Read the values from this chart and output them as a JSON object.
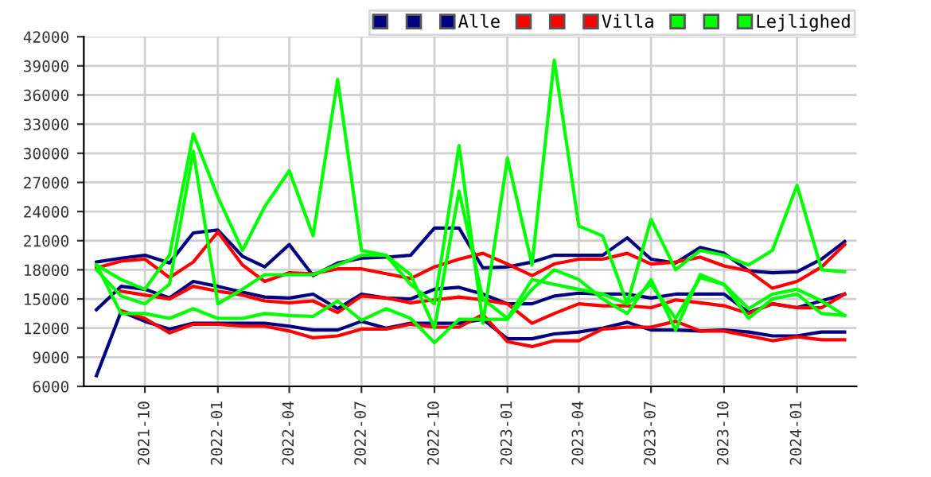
{
  "chart_data": {
    "type": "line",
    "x": [
      "2021-08",
      "2021-09",
      "2021-10",
      "2021-11",
      "2021-12",
      "2022-01",
      "2022-02",
      "2022-03",
      "2022-04",
      "2022-05",
      "2022-06",
      "2022-07",
      "2022-08",
      "2022-09",
      "2022-10",
      "2022-11",
      "2022-12",
      "2023-01",
      "2023-02",
      "2023-03",
      "2023-04",
      "2023-05",
      "2023-06",
      "2023-07",
      "2023-08",
      "2023-09",
      "2023-10",
      "2023-11",
      "2023-12",
      "2024-01",
      "2024-02",
      "2024-03"
    ],
    "series": [
      {
        "color": "#000080",
        "values": [
          18800,
          19200,
          19500,
          18700,
          21800,
          22100,
          19400,
          18300,
          20600,
          17400,
          18700,
          19200,
          19300,
          19500,
          22300,
          22300,
          18200,
          18300,
          18800,
          19500,
          19500,
          19500,
          21300,
          19100,
          18700,
          20300,
          19700,
          17900,
          17700,
          17800,
          19100,
          20900
        ]
      },
      {
        "color": "#000080",
        "values": [
          7100,
          13700,
          12700,
          11900,
          12500,
          12500,
          12500,
          12500,
          12200,
          11800,
          11800,
          12700,
          12000,
          12500,
          12500,
          12500,
          12900,
          10900,
          10900,
          11400,
          11600,
          12000,
          12600,
          11800,
          11800,
          11700,
          11800,
          11600,
          11200,
          11200,
          11600,
          11600
        ]
      },
      {
        "name": "Alle",
        "color": "#000080",
        "values": [
          13900,
          16300,
          16000,
          15100,
          16800,
          16300,
          15700,
          15200,
          15100,
          15500,
          14000,
          15500,
          15100,
          15000,
          16000,
          16200,
          15500,
          14500,
          14500,
          15300,
          15600,
          15500,
          15500,
          15100,
          15500,
          15500,
          15500,
          13600,
          14500,
          14100,
          14800,
          15500
        ]
      },
      {
        "color": "#ff0000",
        "values": [
          18200,
          18900,
          19100,
          17200,
          18800,
          21900,
          18500,
          16800,
          17700,
          17600,
          18100,
          18100,
          17600,
          17100,
          18300,
          19100,
          19700,
          18600,
          17400,
          18600,
          19100,
          19100,
          19700,
          18600,
          18800,
          19300,
          18400,
          17900,
          16100,
          16800,
          18300,
          20600
        ]
      },
      {
        "color": "#ff0000",
        "values": [
          null,
          13800,
          13000,
          11500,
          12400,
          12400,
          12200,
          12200,
          11700,
          11000,
          11200,
          11900,
          11900,
          12400,
          12100,
          12100,
          13400,
          10600,
          10100,
          10700,
          10700,
          11900,
          12100,
          12100,
          12700,
          11700,
          11700,
          11200,
          10700,
          11100,
          10800,
          10800
        ]
      },
      {
        "name": "Villa",
        "color": "#ff0000",
        "values": [
          null,
          15800,
          15400,
          15000,
          16300,
          15800,
          15400,
          14800,
          14600,
          14800,
          13600,
          15300,
          15100,
          14600,
          14900,
          15200,
          14900,
          14500,
          12500,
          13500,
          14500,
          14300,
          14300,
          14100,
          14900,
          14600,
          14300,
          13500,
          14500,
          14100,
          14100,
          15500
        ]
      },
      {
        "color": "#00ff00",
        "values": [
          18500,
          17000,
          16000,
          19500,
          32000,
          25500,
          20000,
          24500,
          28200,
          21500,
          37600,
          20000,
          19500,
          16500,
          14500,
          30800,
          12500,
          29500,
          18500,
          39600,
          22500,
          21500,
          14500,
          23200,
          18000,
          20000,
          19500,
          18500,
          20000,
          26700,
          18000,
          17800
        ]
      },
      {
        "color": "#00ff00",
        "values": [
          18000,
          15300,
          14500,
          16500,
          30200,
          14500,
          16000,
          17500,
          17500,
          17500,
          18500,
          19500,
          19500,
          17500,
          12000,
          26100,
          15000,
          13000,
          17000,
          16500,
          16000,
          15500,
          14500,
          16500,
          13000,
          17200,
          16500,
          14000,
          15500,
          16000,
          14800,
          13300
        ]
      },
      {
        "name": "Lejlighed",
        "color": "#00ff00",
        "values": [
          18500,
          13500,
          13500,
          13000,
          14000,
          13000,
          13000,
          13500,
          13300,
          13200,
          14800,
          12800,
          14000,
          13000,
          10500,
          12900,
          12900,
          12900,
          16000,
          18000,
          17000,
          15000,
          13500,
          17000,
          11800,
          17500,
          16500,
          13000,
          15000,
          15500,
          13500,
          13300
        ]
      }
    ],
    "xlim": [
      "2021-07-16",
      "2024-03-16"
    ],
    "xticks": [
      {
        "value": "2021-10",
        "label": "2021-10"
      },
      {
        "value": "2022-01",
        "label": "2022-01"
      },
      {
        "value": "2022-04",
        "label": "2022-04"
      },
      {
        "value": "2022-07",
        "label": "2022-07"
      },
      {
        "value": "2022-10",
        "label": "2022-10"
      },
      {
        "value": "2023-01",
        "label": "2023-01"
      },
      {
        "value": "2023-04",
        "label": "2023-04"
      },
      {
        "value": "2023-07",
        "label": "2023-07"
      },
      {
        "value": "2023-10",
        "label": "2023-10"
      },
      {
        "value": "2024-01",
        "label": "2024-01"
      }
    ],
    "ylim": [
      6000,
      42000
    ],
    "yticks": [
      6000,
      9000,
      12000,
      15000,
      18000,
      21000,
      24000,
      27000,
      30000,
      33000,
      36000,
      39000,
      42000
    ],
    "grid": true,
    "legend": "top right",
    "marker": "none",
    "line_style": "solid"
  }
}
